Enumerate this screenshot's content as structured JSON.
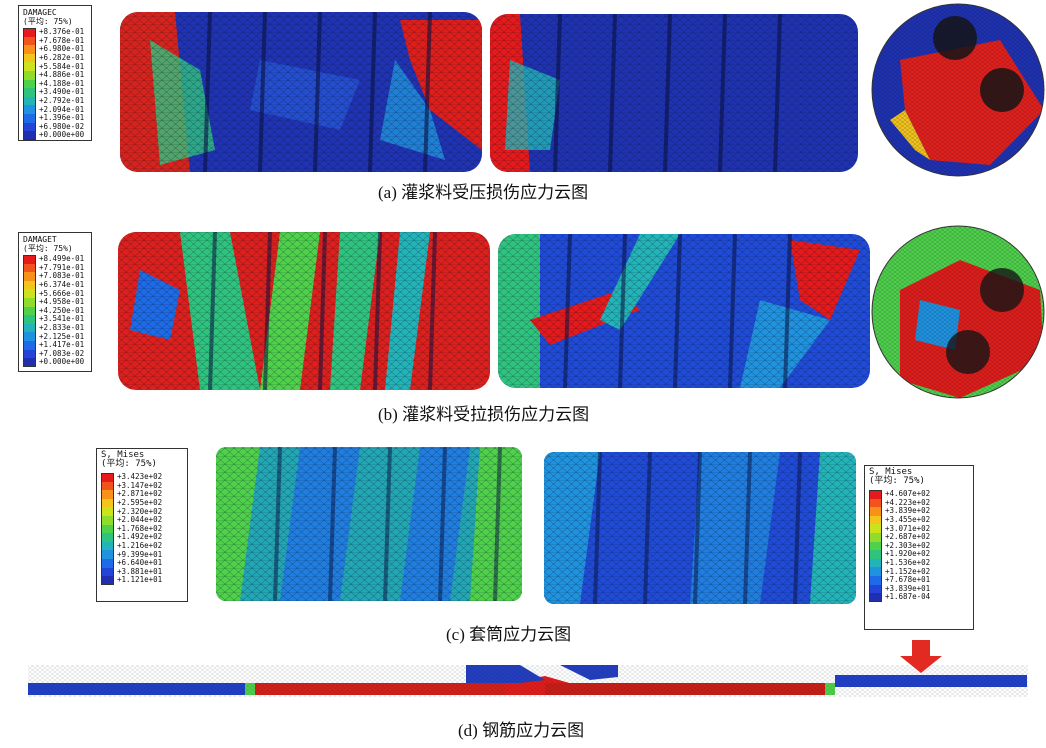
{
  "legends": {
    "a": {
      "title": "DAMAGEC",
      "subtitle": "(平均: 75%)",
      "values": [
        "+8.376e-01",
        "+7.678e-01",
        "+6.980e-01",
        "+6.282e-01",
        "+5.584e-01",
        "+4.886e-01",
        "+4.188e-01",
        "+3.490e-01",
        "+2.792e-01",
        "+2.094e-01",
        "+1.396e-01",
        "+6.980e-02",
        "+0.000e+00"
      ]
    },
    "b": {
      "title": "DAMAGET",
      "subtitle": "(平均: 75%)",
      "values": [
        "+8.499e-01",
        "+7.791e-01",
        "+7.083e-01",
        "+6.374e-01",
        "+5.666e-01",
        "+4.958e-01",
        "+4.250e-01",
        "+3.541e-01",
        "+2.833e-01",
        "+2.125e-01",
        "+1.417e-01",
        "+7.083e-02",
        "+0.000e+00"
      ]
    },
    "c": {
      "title": "S, Mises",
      "subtitle": "(平均: 75%)",
      "values": [
        "+3.423e+02",
        "+3.147e+02",
        "+2.871e+02",
        "+2.595e+02",
        "+2.320e+02",
        "+2.044e+02",
        "+1.768e+02",
        "+1.492e+02",
        "+1.216e+02",
        "+9.399e+01",
        "+6.640e+01",
        "+3.881e+01",
        "+1.121e+01"
      ]
    },
    "d": {
      "title": "S, Mises",
      "subtitle": "(平均: 75%)",
      "values": [
        "+4.607e+02",
        "+4.223e+02",
        "+3.839e+02",
        "+3.455e+02",
        "+3.071e+02",
        "+2.687e+02",
        "+2.303e+02",
        "+1.920e+02",
        "+1.536e+02",
        "+1.152e+02",
        "+7.678e+01",
        "+3.839e+01",
        "+1.687e-04"
      ]
    }
  },
  "colormap": [
    "#e6191b",
    "#f2531c",
    "#f7911a",
    "#f2c41c",
    "#cbe21c",
    "#8fdc2c",
    "#4fd14a",
    "#2fc47e",
    "#22b4b8",
    "#1f93df",
    "#1d6be6",
    "#2444d8",
    "#1f2fb0"
  ],
  "captions": {
    "a": "(a) 灌浆料受压损伤应力云图",
    "b": "(b) 灌浆料受拉损伤应力云图",
    "c": "(c) 套筒应力云图",
    "d": "(d) 钢筋应力云图"
  }
}
